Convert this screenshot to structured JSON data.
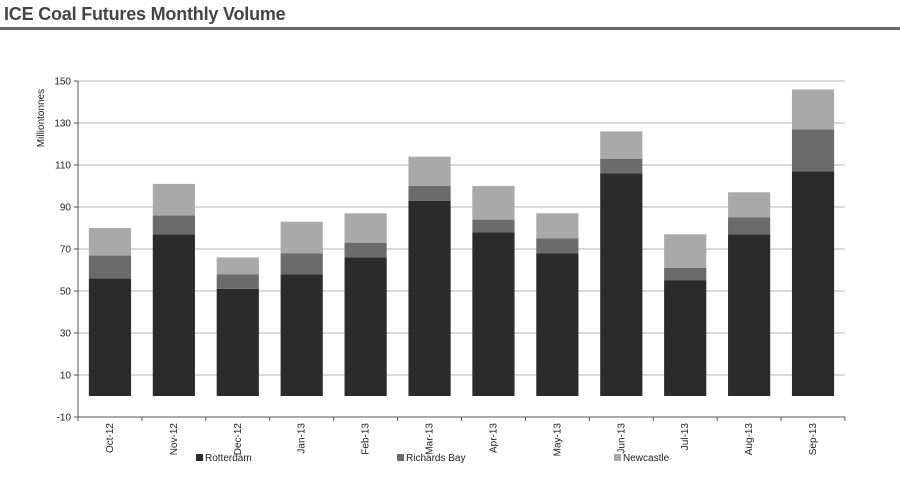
{
  "header": {
    "title": "ICE Coal Futures Monthly Volume"
  },
  "chart_data": {
    "type": "bar",
    "stacked": true,
    "title": "ICE Coal Futures Monthly Volume",
    "xlabel": "",
    "ylabel": "Milliontonnes",
    "ylim": [
      -10,
      150
    ],
    "yticks": [
      -10,
      10,
      30,
      50,
      70,
      90,
      110,
      130,
      150
    ],
    "grid": true,
    "legend_position": "bottom",
    "categories": [
      "Oct-12",
      "Nov-12",
      "Dec-12",
      "Jan-13",
      "Feb-13",
      "Mar-13",
      "Apr-13",
      "May-13",
      "Jun-13",
      "Jul-13",
      "Aug-13",
      "Sep-13"
    ],
    "series": [
      {
        "name": "Rotterdam",
        "color": "#2b2b2b",
        "values": [
          56,
          77,
          51,
          58,
          66,
          93,
          78,
          68,
          106,
          55,
          77,
          107
        ]
      },
      {
        "name": "Richards Bay",
        "color": "#6b6b6b",
        "values": [
          11,
          9,
          7,
          10,
          7,
          7,
          6,
          7,
          7,
          6,
          8,
          20
        ]
      },
      {
        "name": "Newcastle",
        "color": "#a9a9a9",
        "values": [
          13,
          15,
          8,
          15,
          14,
          14,
          16,
          12,
          13,
          16,
          12,
          19
        ]
      }
    ]
  }
}
